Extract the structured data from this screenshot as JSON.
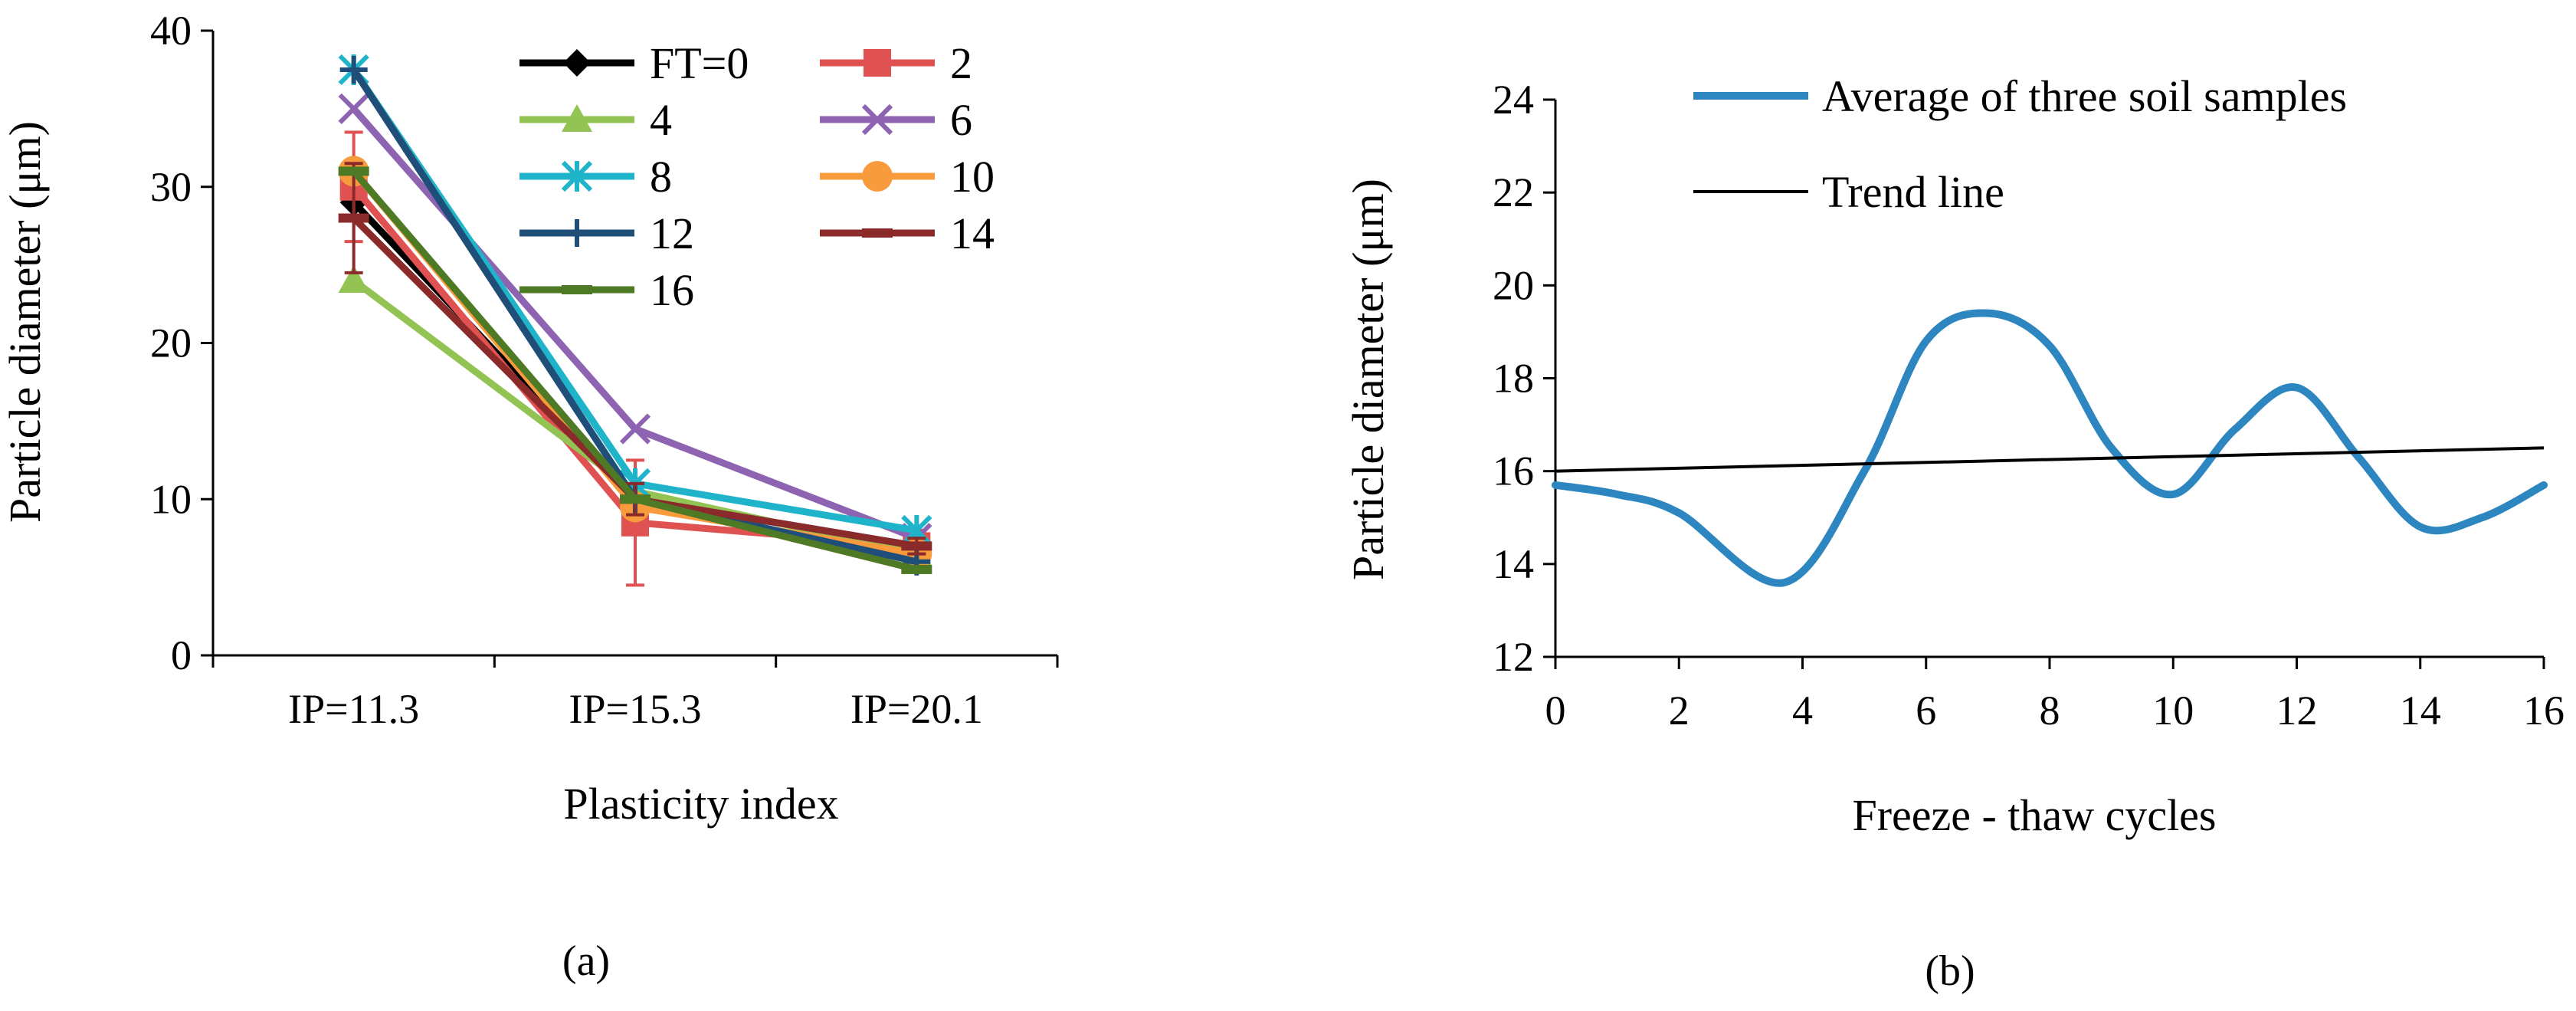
{
  "chart_data": [
    {
      "type": "line",
      "panel_label": "(a)",
      "xlabel": "Plasticity index",
      "ylabel": "Particle diameter (μm)",
      "categories": [
        "IP=11.3",
        "IP=15.3",
        "IP=20.1"
      ],
      "ylim": [
        0,
        40
      ],
      "yticks": [
        0,
        10,
        20,
        30,
        40
      ],
      "grid": false,
      "legend": "top-right, two columns",
      "series": [
        {
          "name": "FT=0",
          "color": "#000000",
          "marker": "diamond",
          "values": [
            29.0,
            10.0,
            7.0
          ]
        },
        {
          "name": "2",
          "color": "#e05252",
          "marker": "square",
          "values": [
            30.0,
            8.5,
            7.0
          ],
          "error": [
            3.5,
            4.0,
            1.0
          ]
        },
        {
          "name": "4",
          "color": "#92c353",
          "marker": "triangle",
          "values": [
            24.0,
            10.5,
            6.5
          ]
        },
        {
          "name": "6",
          "color": "#8e63b1",
          "marker": "x",
          "values": [
            35.0,
            14.5,
            7.5
          ]
        },
        {
          "name": "8",
          "color": "#1fb4c9",
          "marker": "asterisk",
          "values": [
            37.5,
            11.0,
            8.0
          ]
        },
        {
          "name": "10",
          "color": "#f79b3c",
          "marker": "circle",
          "values": [
            31.0,
            9.5,
            6.5
          ]
        },
        {
          "name": "12",
          "color": "#1f4e79",
          "marker": "plus",
          "values": [
            37.5,
            10.0,
            6.0
          ]
        },
        {
          "name": "14",
          "color": "#8b2a2a",
          "marker": "dash",
          "values": [
            28.0,
            10.0,
            7.0
          ],
          "error": [
            3.5,
            1.0,
            0.5
          ]
        },
        {
          "name": "16",
          "color": "#4e7a26",
          "marker": "dash",
          "values": [
            31.0,
            10.0,
            5.5
          ]
        }
      ]
    },
    {
      "type": "line",
      "panel_label": "(b)",
      "xlabel": "Freeze - thaw cycles",
      "ylabel": "Particle diameter (μm)",
      "xlim": [
        0,
        16
      ],
      "xticks": [
        0,
        2,
        4,
        6,
        8,
        10,
        12,
        14,
        16
      ],
      "ylim": [
        12,
        24
      ],
      "yticks": [
        12,
        14,
        16,
        18,
        20,
        22,
        24
      ],
      "grid": false,
      "legend": "top",
      "series": [
        {
          "name": "Average of three soil samples",
          "color": "#2e86c1",
          "smooth": true,
          "x": [
            0,
            1,
            2,
            3.7,
            5,
            6,
            7,
            8,
            9,
            10,
            11,
            12,
            13,
            14,
            15,
            16
          ],
          "y": [
            15.7,
            15.5,
            15.1,
            13.6,
            16.0,
            18.8,
            19.4,
            18.7,
            16.5,
            15.5,
            16.9,
            17.8,
            16.3,
            14.8,
            15.0,
            15.7
          ]
        },
        {
          "name": "Trend line",
          "color": "#000000",
          "smooth": false,
          "x": [
            0,
            16
          ],
          "y": [
            16.0,
            16.5
          ]
        }
      ]
    }
  ]
}
